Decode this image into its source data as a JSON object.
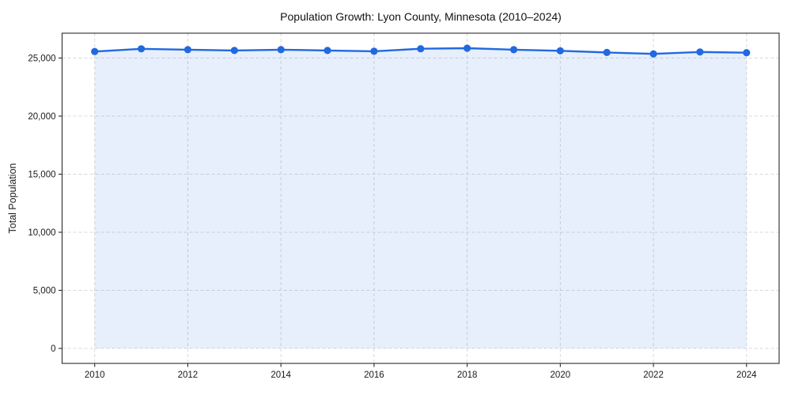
{
  "chart_data": {
    "type": "line",
    "title": "Population Growth: Lyon County, Minnesota (2010–2024)",
    "xlabel": "",
    "ylabel": "Total Population",
    "x": [
      2010,
      2011,
      2012,
      2013,
      2014,
      2015,
      2016,
      2017,
      2018,
      2019,
      2020,
      2021,
      2022,
      2023,
      2024
    ],
    "values": [
      25560,
      25790,
      25720,
      25650,
      25720,
      25650,
      25580,
      25800,
      25850,
      25720,
      25620,
      25480,
      25360,
      25520,
      25460
    ],
    "xticks": [
      2010,
      2012,
      2014,
      2016,
      2018,
      2020,
      2022,
      2024
    ],
    "yticks": [
      0,
      5000,
      10000,
      15000,
      20000,
      25000
    ],
    "ytick_labels": [
      "0",
      "5,000",
      "10,000",
      "15,000",
      "20,000",
      "25,000"
    ],
    "xlim": [
      2009.3,
      2024.7
    ],
    "ylim": [
      -1290,
      27140
    ],
    "grid": true,
    "grid_style": "dashed",
    "legend": "none",
    "marker": "circle",
    "area_fill": true,
    "area_fill_baseline": 0,
    "colors": {
      "line": "#2169e0",
      "marker": "#2169e0",
      "area": "rgba(33,105,224,0.11)",
      "grid": "#d8d8d8",
      "spine": "#2a2a2a",
      "text": "#1a1a1a",
      "background": "#ffffff"
    }
  }
}
